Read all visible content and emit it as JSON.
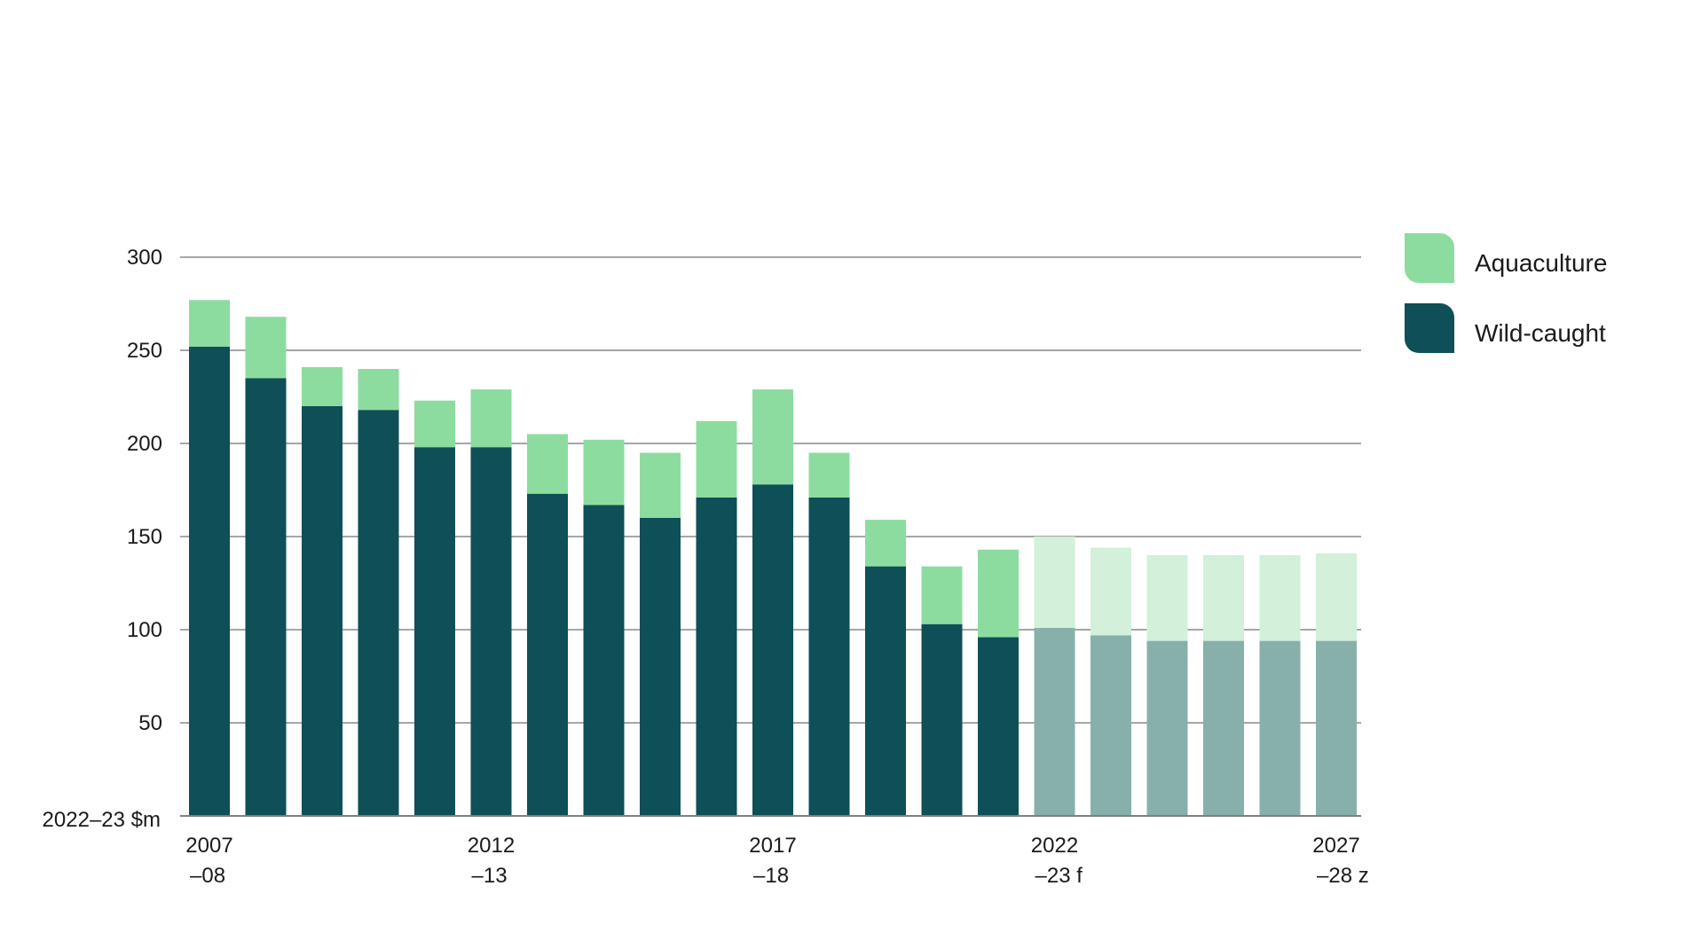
{
  "chart_data": {
    "type": "bar",
    "stacked": true,
    "ylabel": "2022–23 $m",
    "ylim": [
      0,
      300
    ],
    "yticks": [
      50,
      100,
      150,
      200,
      250,
      300
    ],
    "grid": true,
    "legend_position": "right-top",
    "categories": [
      "2007–08",
      "2008–09",
      "2009–10",
      "2010–11",
      "2011–12",
      "2012–13",
      "2013–14",
      "2014–15",
      "2015–16",
      "2016–17",
      "2017–18",
      "2018–19",
      "2019–20",
      "2020–21",
      "2021–22",
      "2022–23 f",
      "2023–24 z",
      "2024–25 z",
      "2025–26 z",
      "2026–27 z",
      "2027–28 z"
    ],
    "x_tick_labels": [
      {
        "index": 0,
        "line1": "2007",
        "line2": "–08"
      },
      {
        "index": 5,
        "line1": "2012",
        "line2": "–13"
      },
      {
        "index": 10,
        "line1": "2017",
        "line2": "–18"
      },
      {
        "index": 15,
        "line1": "2022",
        "line2": "–23 f"
      },
      {
        "index": 20,
        "line1": "2027",
        "line2": "–28 z"
      }
    ],
    "forecast_start_index": 15,
    "series": [
      {
        "name": "Wild-caught",
        "color": "#0e4f58",
        "forecast_color": "#88b0aa",
        "values": [
          252,
          235,
          220,
          218,
          198,
          198,
          173,
          167,
          160,
          171,
          178,
          171,
          134,
          103,
          96,
          101,
          97,
          94,
          94,
          94,
          94
        ]
      },
      {
        "name": "Aquaculture",
        "color": "#8cdca0",
        "forecast_color": "#d2f0da",
        "values": [
          25,
          33,
          21,
          22,
          25,
          31,
          32,
          35,
          35,
          41,
          51,
          24,
          25,
          31,
          47,
          49,
          47,
          46,
          46,
          46,
          47
        ]
      }
    ],
    "legend": [
      {
        "label": "Aquaculture",
        "color": "#8cdca0"
      },
      {
        "label": "Wild-caught",
        "color": "#0e4f58"
      }
    ]
  }
}
